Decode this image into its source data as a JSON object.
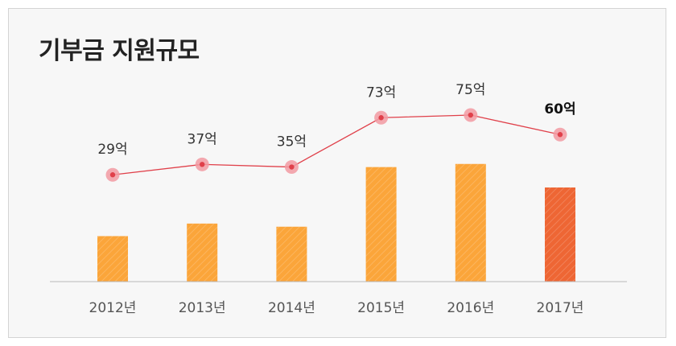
{
  "title": "기부금 지원규모",
  "colors": {
    "bar": "#fba53a",
    "bar_highlight": "#ee6634",
    "line": "#e0404a",
    "point_halo": "#f29aa2",
    "axis": "#b8b8b8",
    "background": "#f7f7f7"
  },
  "chart_data": {
    "type": "bar+line",
    "title": "기부금 지원규모",
    "categories": [
      "2012년",
      "2013년",
      "2014년",
      "2015년",
      "2016년",
      "2017년"
    ],
    "series": [
      {
        "type": "bar",
        "values": [
          29,
          37,
          35,
          73,
          75,
          60
        ]
      },
      {
        "type": "line",
        "values": [
          29,
          37,
          35,
          73,
          75,
          60
        ]
      }
    ],
    "data_labels": [
      "29억",
      "37억",
      "35억",
      "73억",
      "75억",
      "60억"
    ],
    "highlight_index": 5,
    "xlabel": "",
    "ylabel": "",
    "grid": false,
    "legend": "none"
  }
}
